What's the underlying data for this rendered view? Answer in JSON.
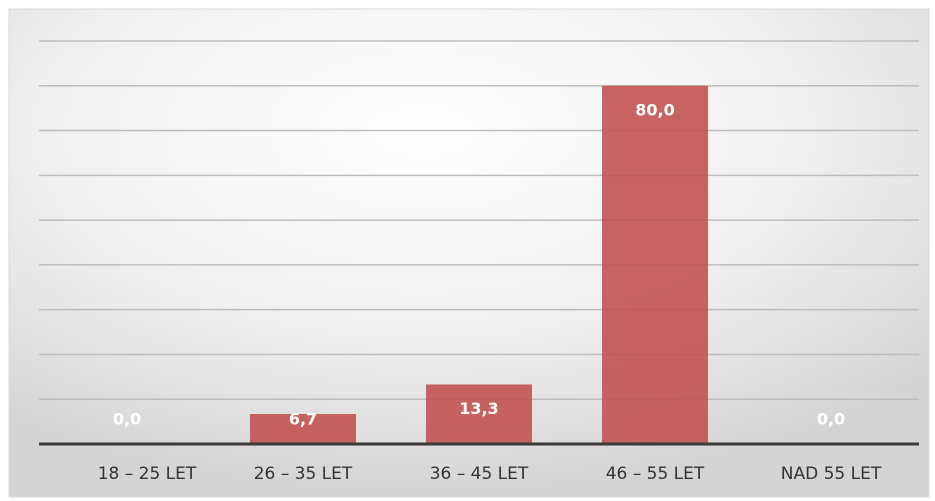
{
  "chart_data": {
    "type": "bar",
    "categories": [
      "18 – 25 LET",
      "26 – 35 LET",
      "36 – 45 LET",
      "46 – 55 LET",
      "NAD 55 LET"
    ],
    "values": [
      0,
      6.7,
      13.3,
      80,
      0
    ],
    "value_labels": [
      "0,0",
      "6,7",
      "13,3",
      "80,0",
      "0,0"
    ],
    "color": "#c0504d",
    "ylim": [
      0,
      90
    ],
    "yticks": [
      0,
      10,
      20,
      30,
      40,
      50,
      60,
      70,
      80,
      90
    ],
    "grid": true
  }
}
